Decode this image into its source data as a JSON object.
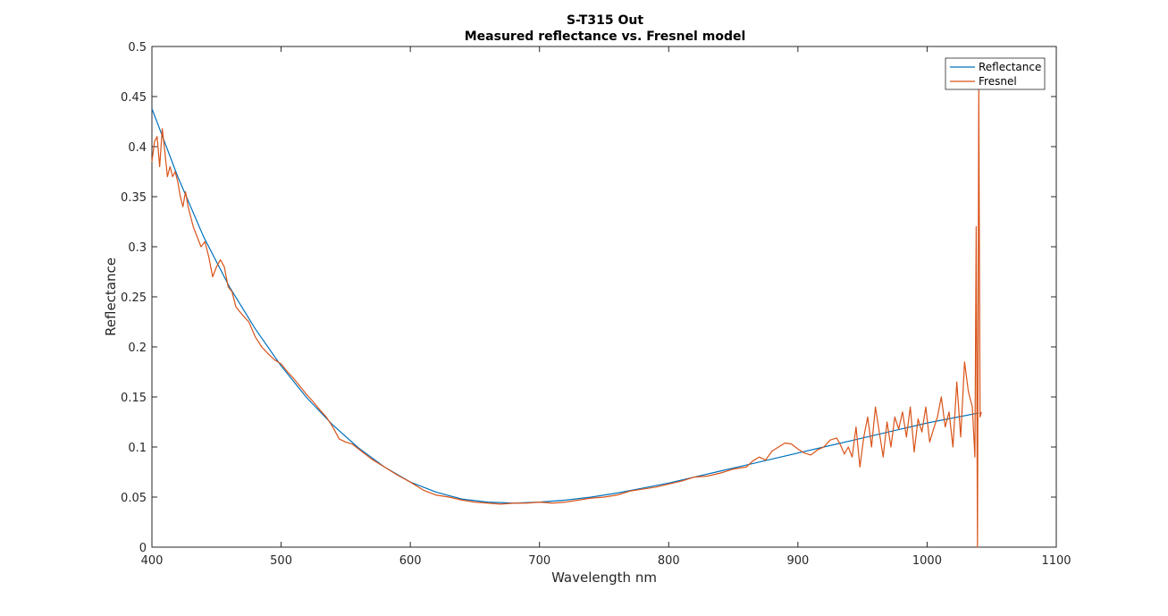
{
  "chart_data": {
    "type": "line",
    "title": "S-T315 Out",
    "subtitle": "Measured reflectance vs. Fresnel model",
    "xlabel": "Wavelength nm",
    "ylabel": "Reflectance",
    "xlim": [
      400,
      1100
    ],
    "ylim": [
      0,
      0.5
    ],
    "xticks": [
      "400",
      "500",
      "600",
      "700",
      "800",
      "900",
      "1000",
      "1100"
    ],
    "yticks": [
      "0",
      "0.05",
      "0.1",
      "0.15",
      "0.2",
      "0.25",
      "0.3",
      "0.35",
      "0.4",
      "0.45",
      "0.5"
    ],
    "grid": false,
    "legend_position": "top-right",
    "series": [
      {
        "name": "Reflectance",
        "color": "#0072BD",
        "x": [
          400,
          420,
          440,
          460,
          480,
          500,
          520,
          540,
          560,
          580,
          600,
          620,
          640,
          660,
          680,
          700,
          720,
          740,
          760,
          780,
          800,
          820,
          840,
          860,
          880,
          900,
          920,
          940,
          960,
          980,
          1000,
          1020,
          1040
        ],
        "y": [
          0.438,
          0.37,
          0.31,
          0.26,
          0.218,
          0.181,
          0.149,
          0.122,
          0.099,
          0.08,
          0.065,
          0.055,
          0.048,
          0.045,
          0.044,
          0.045,
          0.047,
          0.05,
          0.054,
          0.059,
          0.064,
          0.07,
          0.076,
          0.082,
          0.088,
          0.094,
          0.1,
          0.106,
          0.112,
          0.118,
          0.124,
          0.129,
          0.134
        ]
      },
      {
        "name": "Fresnel",
        "color": "#D95319",
        "x": [
          400,
          402,
          404,
          406,
          408,
          410,
          412,
          414,
          416,
          418,
          420,
          422,
          424,
          426,
          428,
          430,
          432,
          435,
          438,
          441,
          444,
          447,
          450,
          453,
          456,
          459,
          462,
          465,
          470,
          475,
          480,
          485,
          490,
          495,
          500,
          505,
          510,
          515,
          520,
          525,
          530,
          535,
          540,
          545,
          550,
          555,
          560,
          570,
          580,
          590,
          600,
          610,
          620,
          630,
          640,
          650,
          660,
          670,
          680,
          690,
          700,
          710,
          720,
          730,
          740,
          750,
          760,
          770,
          780,
          790,
          800,
          810,
          820,
          830,
          840,
          850,
          860,
          865,
          870,
          875,
          880,
          885,
          890,
          895,
          900,
          905,
          910,
          915,
          920,
          925,
          930,
          933,
          936,
          939,
          942,
          945,
          948,
          951,
          954,
          957,
          960,
          963,
          966,
          969,
          972,
          975,
          978,
          981,
          984,
          987,
          990,
          993,
          996,
          999,
          1002,
          1005,
          1008,
          1011,
          1014,
          1017,
          1020,
          1023,
          1026,
          1029,
          1032,
          1035,
          1037,
          1038,
          1039,
          1040,
          1041,
          1042
        ],
        "y": [
          0.385,
          0.405,
          0.41,
          0.38,
          0.418,
          0.395,
          0.37,
          0.38,
          0.37,
          0.375,
          0.365,
          0.35,
          0.34,
          0.355,
          0.34,
          0.33,
          0.32,
          0.31,
          0.3,
          0.305,
          0.29,
          0.27,
          0.28,
          0.287,
          0.28,
          0.26,
          0.255,
          0.24,
          0.232,
          0.225,
          0.21,
          0.2,
          0.193,
          0.187,
          0.183,
          0.175,
          0.168,
          0.16,
          0.152,
          0.145,
          0.137,
          0.13,
          0.12,
          0.108,
          0.105,
          0.103,
          0.098,
          0.088,
          0.08,
          0.072,
          0.065,
          0.057,
          0.052,
          0.05,
          0.047,
          0.045,
          0.044,
          0.043,
          0.044,
          0.044,
          0.045,
          0.044,
          0.045,
          0.047,
          0.049,
          0.05,
          0.052,
          0.056,
          0.058,
          0.06,
          0.063,
          0.066,
          0.07,
          0.071,
          0.074,
          0.078,
          0.08,
          0.086,
          0.09,
          0.087,
          0.096,
          0.1,
          0.104,
          0.103,
          0.098,
          0.094,
          0.092,
          0.097,
          0.1,
          0.107,
          0.109,
          0.102,
          0.093,
          0.1,
          0.09,
          0.12,
          0.08,
          0.11,
          0.13,
          0.1,
          0.14,
          0.115,
          0.09,
          0.125,
          0.1,
          0.13,
          0.118,
          0.135,
          0.11,
          0.14,
          0.095,
          0.128,
          0.115,
          0.14,
          0.105,
          0.118,
          0.13,
          0.15,
          0.12,
          0.135,
          0.1,
          0.165,
          0.11,
          0.185,
          0.155,
          0.14,
          0.09,
          0.32,
          0.0,
          0.46,
          0.13,
          0.135
        ]
      }
    ]
  }
}
